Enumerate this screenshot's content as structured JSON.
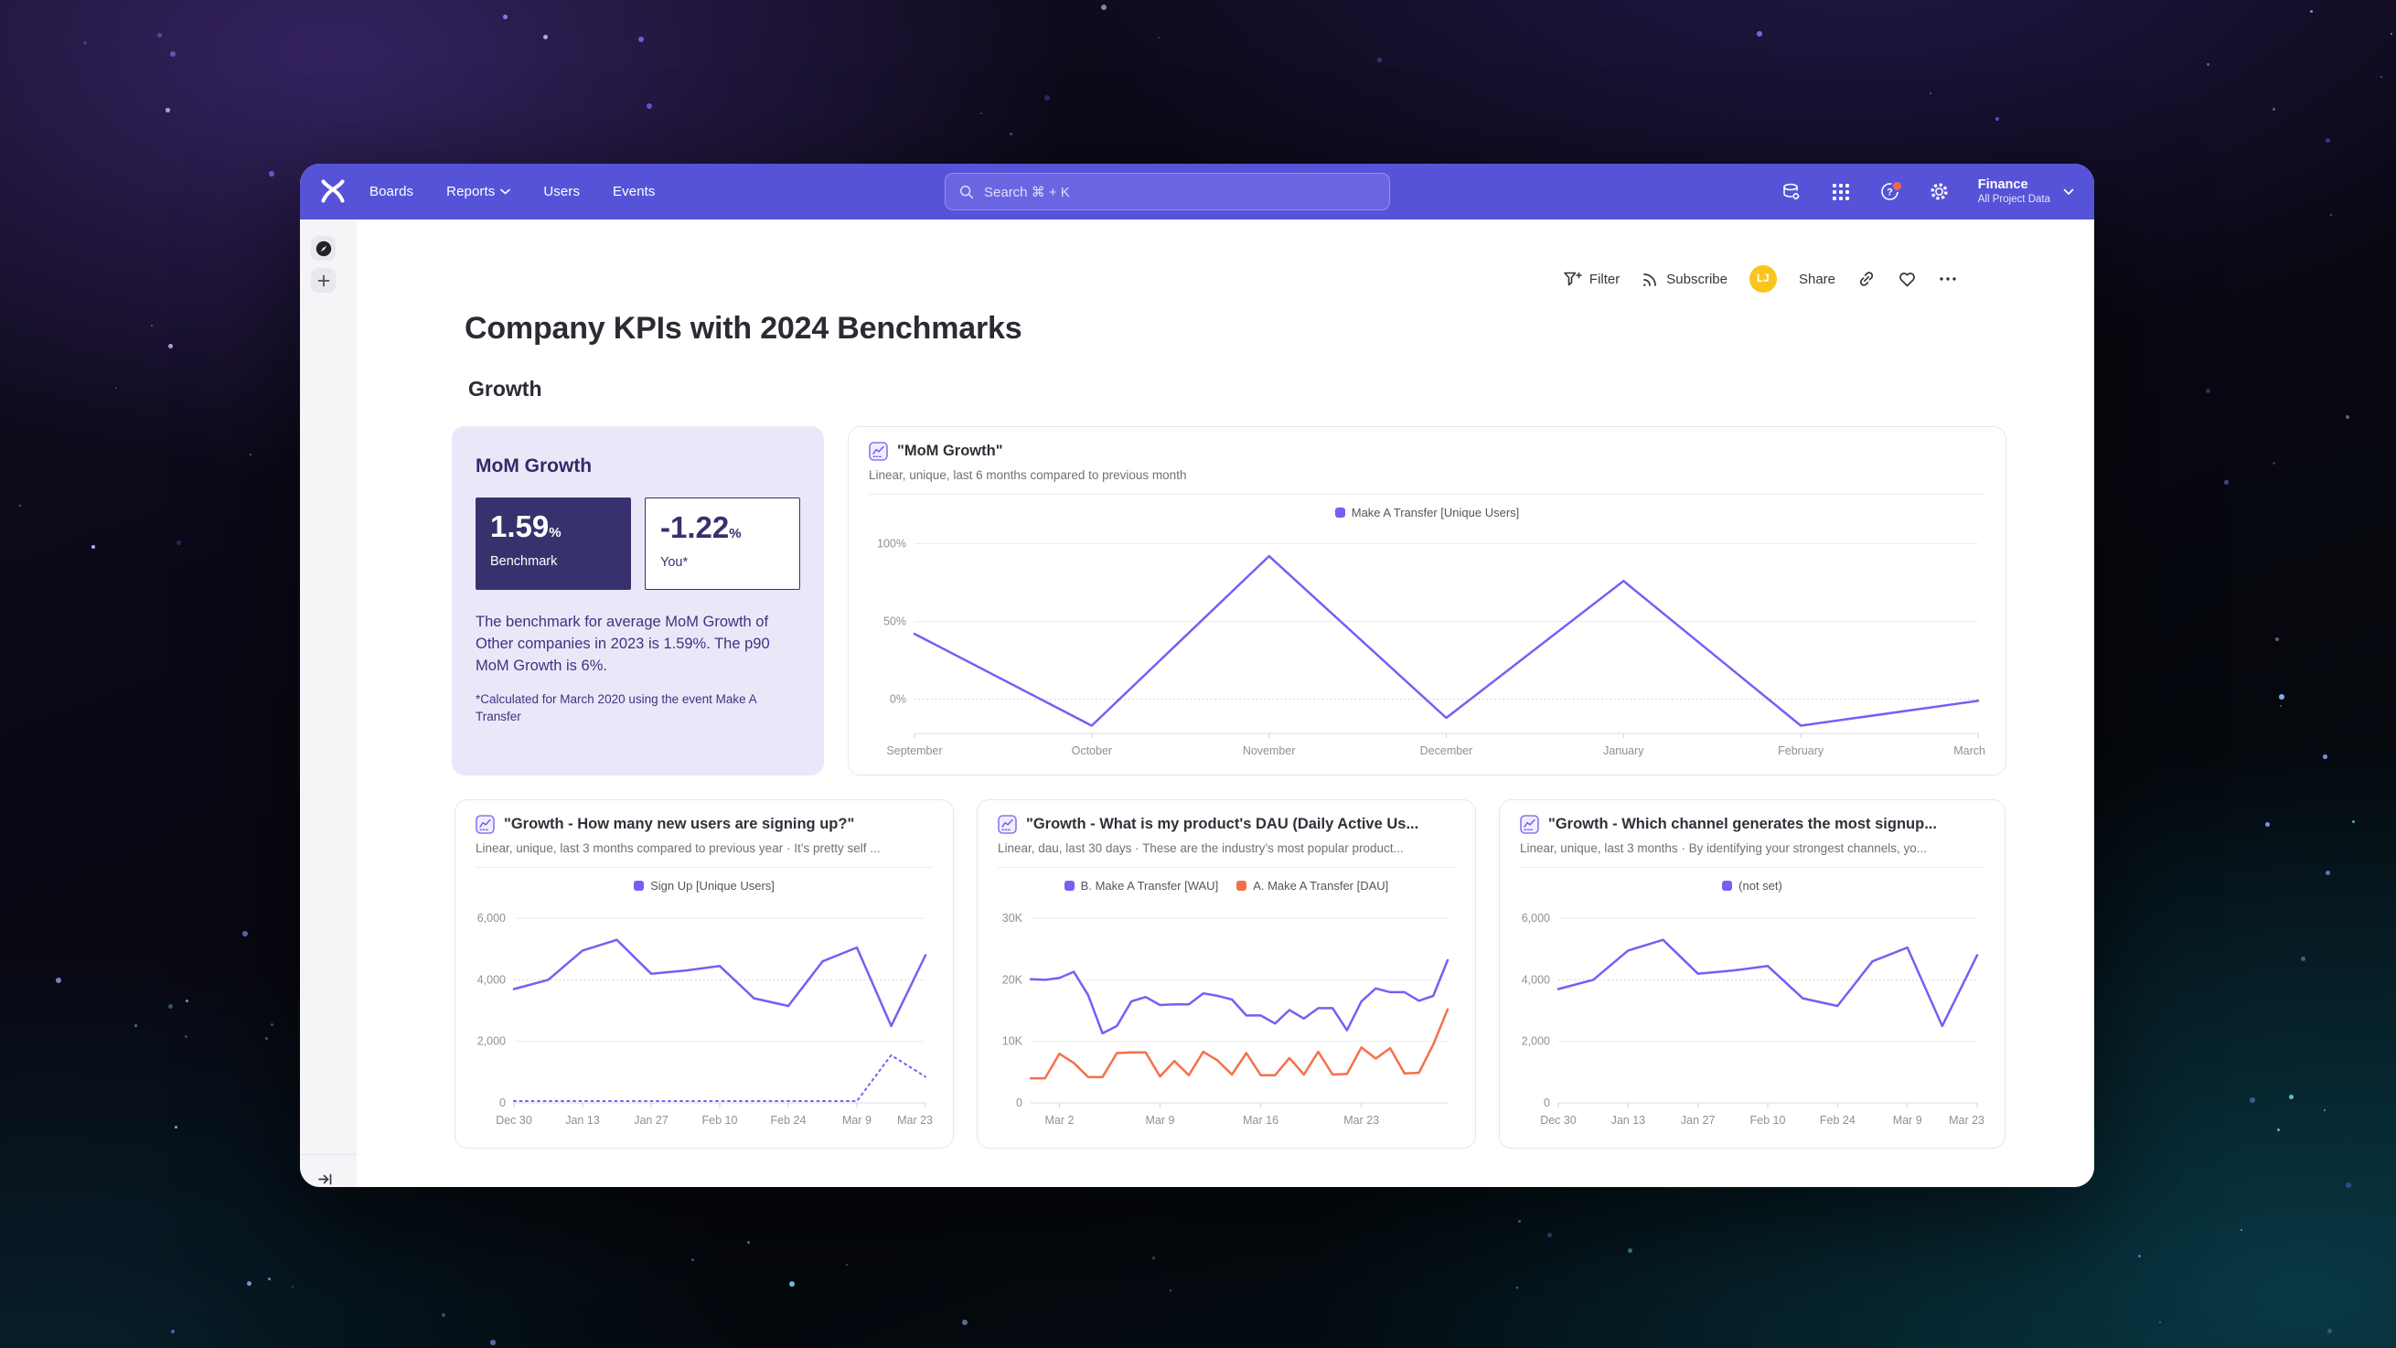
{
  "nav": {
    "items": [
      "Boards",
      "Reports",
      "Users",
      "Events"
    ],
    "search_placeholder": "Search  ⌘ + K",
    "project": {
      "name": "Finance",
      "subtitle": "All Project Data"
    }
  },
  "toolbar": {
    "filter_label": "Filter",
    "subscribe_label": "Subscribe",
    "avatar_initials": "LJ",
    "share_label": "Share"
  },
  "page": {
    "title": "Company KPIs with 2024 Benchmarks",
    "section": "Growth"
  },
  "benchmark_card": {
    "title": "MoM Growth",
    "benchmark_value": "1.59",
    "benchmark_unit": "%",
    "benchmark_label": "Benchmark",
    "you_value": "-1.22",
    "you_unit": "%",
    "you_label": "You*",
    "description": "The benchmark for average MoM Growth of Other companies in 2023 is 1.59%. The p90 MoM Growth is 6%.",
    "footnote": "*Calculated for March 2020 using the event Make A Transfer"
  },
  "colors": {
    "nav_purple": "#5753d8",
    "line_purple": "#7b5cf5",
    "line_orange": "#f4714b",
    "benchmark_navy": "#37316e",
    "avatar_yellow": "#f7c51e",
    "notification_red": "#f4694b"
  },
  "chart_data": [
    {
      "type": "line",
      "title": "\"MoM Growth\"",
      "subtitle": "Linear, unique, last 6 months compared to previous month",
      "legend": [
        {
          "label": "Make A Transfer [Unique Users]",
          "color": "#7b5cf5"
        }
      ],
      "ylim": [
        -22,
        105
      ],
      "y_grid": [
        {
          "value": 100,
          "label": "100%"
        },
        {
          "value": 50,
          "label": "50%"
        },
        {
          "value": 0,
          "label": "0%",
          "dotted": true
        }
      ],
      "x_ticks": [
        {
          "index": 0,
          "label": "September"
        },
        {
          "index": 1,
          "label": "October"
        },
        {
          "index": 2,
          "label": "November"
        },
        {
          "index": 3,
          "label": "December"
        },
        {
          "index": 4,
          "label": "January"
        },
        {
          "index": 5,
          "label": "February"
        },
        {
          "index": 6,
          "label": "March"
        }
      ],
      "series": [
        {
          "name": "Make A Transfer [Unique Users]",
          "color": "#7b5cf5",
          "style": "solid",
          "values": [
            42,
            -17,
            92,
            -12,
            76,
            -17,
            -1
          ]
        }
      ]
    },
    {
      "type": "line",
      "title": "\"Growth - How many new users are signing up?\"",
      "subtitle": "Linear, unique, last 3 months compared to previous year · It’s pretty self ...",
      "legend": [
        {
          "label": "Sign Up [Unique Users]",
          "color": "#7b5cf5"
        }
      ],
      "ylim": [
        0,
        6300
      ],
      "y_grid": [
        {
          "value": 6000,
          "label": "6,000"
        },
        {
          "value": 4000,
          "label": "4,000",
          "dotted": true
        },
        {
          "value": 2000,
          "label": "2,000"
        },
        {
          "value": 0,
          "label": "0"
        }
      ],
      "x_ticks": [
        {
          "index": 0,
          "label": "Dec 30"
        },
        {
          "index": 2,
          "label": "Jan 13"
        },
        {
          "index": 4,
          "label": "Jan 27"
        },
        {
          "index": 6,
          "label": "Feb 10"
        },
        {
          "index": 8,
          "label": "Feb 24"
        },
        {
          "index": 10,
          "label": "Mar 9"
        },
        {
          "index": 12,
          "label": "Mar 23"
        }
      ],
      "series": [
        {
          "name": "Sign Up [Unique Users]",
          "color": "#7b5cf5",
          "style": "solid",
          "values": [
            3700,
            4000,
            4950,
            5300,
            4200,
            4300,
            4450,
            3400,
            3150,
            4600,
            5050,
            2500,
            4800
          ]
        },
        {
          "color": "#7b5cf5",
          "style": "dotted",
          "values": [
            60,
            60,
            60,
            60,
            60,
            60,
            60,
            60,
            60,
            60,
            60,
            1550,
            850
          ]
        }
      ]
    },
    {
      "type": "line",
      "title": "\"Growth - What is my product's DAU (Daily Active Us...",
      "subtitle": "Linear, dau, last 30 days · These are the industry’s most popular product...",
      "legend": [
        {
          "label": "B. Make A Transfer [WAU]",
          "color": "#7b5cf5"
        },
        {
          "label": "A. Make A Transfer [DAU]",
          "color": "#f4714b"
        }
      ],
      "ylim": [
        0,
        31500
      ],
      "y_grid": [
        {
          "value": 30000,
          "label": "30K"
        },
        {
          "value": 20000,
          "label": "20K"
        },
        {
          "value": 10000,
          "label": "10K"
        },
        {
          "value": 0,
          "label": "0"
        }
      ],
      "x_ticks": [
        {
          "index": 2,
          "label": "Mar 2"
        },
        {
          "index": 9,
          "label": "Mar 9"
        },
        {
          "index": 16,
          "label": "Mar 16"
        },
        {
          "index": 23,
          "label": "Mar 23"
        }
      ],
      "series": [
        {
          "name": "B. Make A Transfer [WAU]",
          "color": "#7b5cf5",
          "style": "solid",
          "values": [
            20100,
            20000,
            20300,
            21300,
            17500,
            11300,
            12500,
            16500,
            17200,
            15900,
            16000,
            16000,
            17800,
            17400,
            16800,
            14200,
            14200,
            12900,
            15100,
            13700,
            15400,
            15400,
            11800,
            16500,
            18600,
            18000,
            18000,
            16600,
            17400,
            23200
          ]
        },
        {
          "name": "A. Make A Transfer [DAU]",
          "color": "#f4714b",
          "style": "solid",
          "values": [
            4000,
            4000,
            8000,
            6500,
            4200,
            4200,
            8100,
            8200,
            8200,
            4300,
            6800,
            4500,
            8300,
            6900,
            4600,
            8100,
            4500,
            4500,
            7300,
            4600,
            8300,
            4600,
            4700,
            9000,
            7200,
            8900,
            4800,
            4900,
            9500,
            15200
          ]
        }
      ]
    },
    {
      "type": "line",
      "title": "\"Growth - Which channel generates the most signup...",
      "subtitle": "Linear, unique, last 3 months · By identifying your strongest channels, yo...",
      "legend": [
        {
          "label": "(not set)",
          "color": "#7b5cf5"
        }
      ],
      "ylim": [
        0,
        6300
      ],
      "y_grid": [
        {
          "value": 6000,
          "label": "6,000"
        },
        {
          "value": 4000,
          "label": "4,000",
          "dotted": true
        },
        {
          "value": 2000,
          "label": "2,000"
        },
        {
          "value": 0,
          "label": "0"
        }
      ],
      "x_ticks": [
        {
          "index": 0,
          "label": "Dec 30"
        },
        {
          "index": 2,
          "label": "Jan 13"
        },
        {
          "index": 4,
          "label": "Jan 27"
        },
        {
          "index": 6,
          "label": "Feb 10"
        },
        {
          "index": 8,
          "label": "Feb 24"
        },
        {
          "index": 10,
          "label": "Mar 9"
        },
        {
          "index": 12,
          "label": "Mar 23"
        }
      ],
      "series": [
        {
          "name": "(not set)",
          "color": "#7b5cf5",
          "style": "solid",
          "values": [
            3700,
            4000,
            4950,
            5300,
            4200,
            4300,
            4450,
            3400,
            3150,
            4600,
            5050,
            2500,
            4800
          ]
        }
      ]
    }
  ]
}
